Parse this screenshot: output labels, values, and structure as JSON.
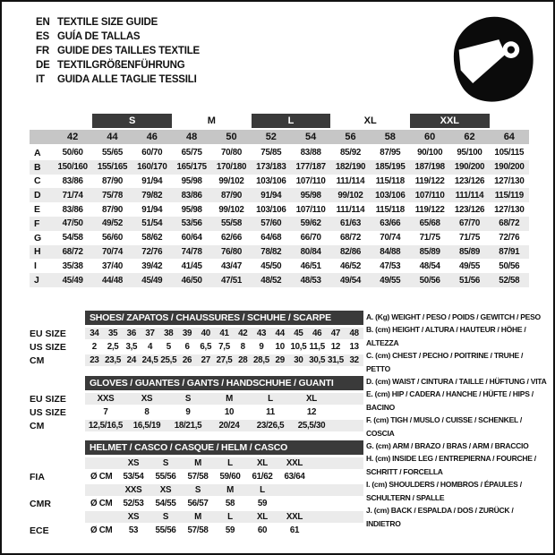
{
  "header": {
    "languages": [
      {
        "code": "EN",
        "label": "TEXTILE SIZE GUIDE"
      },
      {
        "code": "ES",
        "label": "GUÍA DE TALLAS"
      },
      {
        "code": "FR",
        "label": "GUIDE DES TAILLES TEXTILE"
      },
      {
        "code": "DE",
        "label": "TEXTILGRÖßENFÜHRUNG"
      },
      {
        "code": "IT",
        "label": "GUIDA ALLE TAGLIE TESSILI"
      }
    ],
    "icon": "full-face-helmet-icon"
  },
  "main_table": {
    "groups": [
      {
        "label": "S",
        "dark": true
      },
      {
        "label": "M",
        "dark": false
      },
      {
        "label": "L",
        "dark": true
      },
      {
        "label": "XL",
        "dark": false
      },
      {
        "label": "XXL",
        "dark": true
      }
    ],
    "sizes": [
      "42",
      "44",
      "46",
      "48",
      "50",
      "52",
      "54",
      "56",
      "58",
      "60",
      "62",
      "64"
    ],
    "rows": [
      {
        "label": "A",
        "values": [
          "50/60",
          "55/65",
          "60/70",
          "65/75",
          "70/80",
          "75/85",
          "83/88",
          "85/92",
          "87/95",
          "90/100",
          "95/100",
          "105/115"
        ]
      },
      {
        "label": "B",
        "values": [
          "150/160",
          "155/165",
          "160/170",
          "165/175",
          "170/180",
          "173/183",
          "177/187",
          "182/190",
          "185/195",
          "187/198",
          "190/200",
          "190/200"
        ]
      },
      {
        "label": "C",
        "values": [
          "83/86",
          "87/90",
          "91/94",
          "95/98",
          "99/102",
          "103/106",
          "107/110",
          "111/114",
          "115/118",
          "119/122",
          "123/126",
          "127/130"
        ]
      },
      {
        "label": "D",
        "values": [
          "71/74",
          "75/78",
          "79/82",
          "83/86",
          "87/90",
          "91/94",
          "95/98",
          "99/102",
          "103/106",
          "107/110",
          "111/114",
          "115/119"
        ]
      },
      {
        "label": "E",
        "values": [
          "83/86",
          "87/90",
          "91/94",
          "95/98",
          "99/102",
          "103/106",
          "107/110",
          "111/114",
          "115/118",
          "119/122",
          "123/126",
          "127/130"
        ]
      },
      {
        "label": "F",
        "values": [
          "47/50",
          "49/52",
          "51/54",
          "53/56",
          "55/58",
          "57/60",
          "59/62",
          "61/63",
          "63/66",
          "65/68",
          "67/70",
          "68/72"
        ]
      },
      {
        "label": "G",
        "values": [
          "54/58",
          "56/60",
          "58/62",
          "60/64",
          "62/66",
          "64/68",
          "66/70",
          "68/72",
          "70/74",
          "71/75",
          "71/75",
          "72/76"
        ]
      },
      {
        "label": "H",
        "values": [
          "68/72",
          "70/74",
          "72/76",
          "74/78",
          "76/80",
          "78/82",
          "80/84",
          "82/86",
          "84/88",
          "85/89",
          "85/89",
          "87/91"
        ]
      },
      {
        "label": "I",
        "values": [
          "35/38",
          "37/40",
          "39/42",
          "41/45",
          "43/47",
          "45/50",
          "46/51",
          "46/52",
          "47/53",
          "48/54",
          "49/55",
          "50/56"
        ]
      },
      {
        "label": "J",
        "values": [
          "45/49",
          "44/48",
          "45/49",
          "46/50",
          "47/51",
          "48/52",
          "48/53",
          "49/54",
          "49/55",
          "50/56",
          "51/56",
          "52/58"
        ]
      }
    ]
  },
  "shoes": {
    "title": "SHOES/ ZAPATOS / CHAUSSURES / SCHUHE / SCARPE",
    "rows": [
      {
        "label": "EU SIZE",
        "gray": true,
        "cells": [
          "34",
          "35",
          "36",
          "37",
          "38",
          "39",
          "40",
          "41",
          "42",
          "43",
          "44",
          "45",
          "46",
          "47",
          "48"
        ]
      },
      {
        "label": "US SIZE",
        "gray": false,
        "cells": [
          "2",
          "2,5",
          "3,5",
          "4",
          "5",
          "6",
          "6,5",
          "7,5",
          "8",
          "9",
          "10",
          "10,5",
          "11,5",
          "12",
          "13"
        ]
      },
      {
        "label": "CM",
        "gray": true,
        "cells": [
          "23",
          "23,5",
          "24",
          "24,5",
          "25,5",
          "26",
          "27",
          "27,5",
          "28",
          "28,5",
          "29",
          "30",
          "30,5",
          "31,5",
          "32"
        ]
      }
    ]
  },
  "gloves": {
    "title": "GLOVES / GUANTES / GANTS / HANDSCHUHE / GUANTI",
    "rows": [
      {
        "label": "EU SIZE",
        "gray": true,
        "cells": [
          "XXS",
          "XS",
          "S",
          "M",
          "L",
          "XL"
        ]
      },
      {
        "label": "US SIZE",
        "gray": false,
        "cells": [
          "7",
          "8",
          "9",
          "10",
          "11",
          "12"
        ]
      },
      {
        "label": "CM",
        "gray": true,
        "cells": [
          "12,5/16,5",
          "16,5/19",
          "18/21,5",
          "20/24",
          "23/26,5",
          "25,5/30"
        ]
      }
    ]
  },
  "helmet": {
    "title": "HELMET / CASCO / CASQUE / HELM / CASCO",
    "rows": [
      {
        "label": "",
        "gray": true,
        "cells": [
          "",
          "XS",
          "S",
          "M",
          "L",
          "XL",
          "XXL"
        ]
      },
      {
        "label": "FIA",
        "gray": false,
        "cells": [
          "Ø CM",
          "53/54",
          "55/56",
          "57/58",
          "59/60",
          "61/62",
          "63/64"
        ]
      },
      {
        "label": "",
        "gray": true,
        "cells": [
          "",
          "XXS",
          "XS",
          "S",
          "M",
          "L",
          ""
        ]
      },
      {
        "label": "CMR",
        "gray": false,
        "cells": [
          "Ø CM",
          "52/53",
          "54/55",
          "56/57",
          "58",
          "59",
          ""
        ]
      },
      {
        "label": "",
        "gray": true,
        "cells": [
          "",
          "XS",
          "S",
          "M",
          "L",
          "XL",
          "XXL"
        ]
      },
      {
        "label": "ECE",
        "gray": false,
        "cells": [
          "Ø CM",
          "53",
          "55/56",
          "57/58",
          "59",
          "60",
          "61"
        ]
      }
    ]
  },
  "legend": {
    "items": [
      "A. (Kg) WEIGHT / PESO / POIDS / GEWITCH / PESO",
      "B. (cm) HEIGHT / ALTURA / HAUTEUR / HÖHE / ALTEZZA",
      "C. (cm) CHEST / PECHO / POITRINE / TRUHE / PETTO",
      "D. (cm) WAIST / CINTURA / TAILLE / HÜFTUNG / VITA",
      "E. (cm) HIP / CADERA / HANCHE / HÜFTE / HIPS / BACINO",
      "F. (cm) TIGH / MUSLO / CUISSE / SCHENKEL / COSCIA",
      "G. (cm) ARM / BRAZO / BRAS / ARM / BRACCIO",
      "H. (cm) INSIDE LEG / ENTREPIERNA / FOURCHE / SCHRITT / FORCELLA",
      "I. (cm) SHOULDERS / HOMBROS / ÉPAULES / SCHULTERN / SPALLE",
      "J. (cm) BACK / ESPALDA / DOS / ZURÜCK / INDIETRO"
    ]
  },
  "colors": {
    "dark_bar": "#3a3a3a",
    "size_band": "#c6c6c6",
    "row_band": "#ebebeb",
    "text": "#111111"
  }
}
